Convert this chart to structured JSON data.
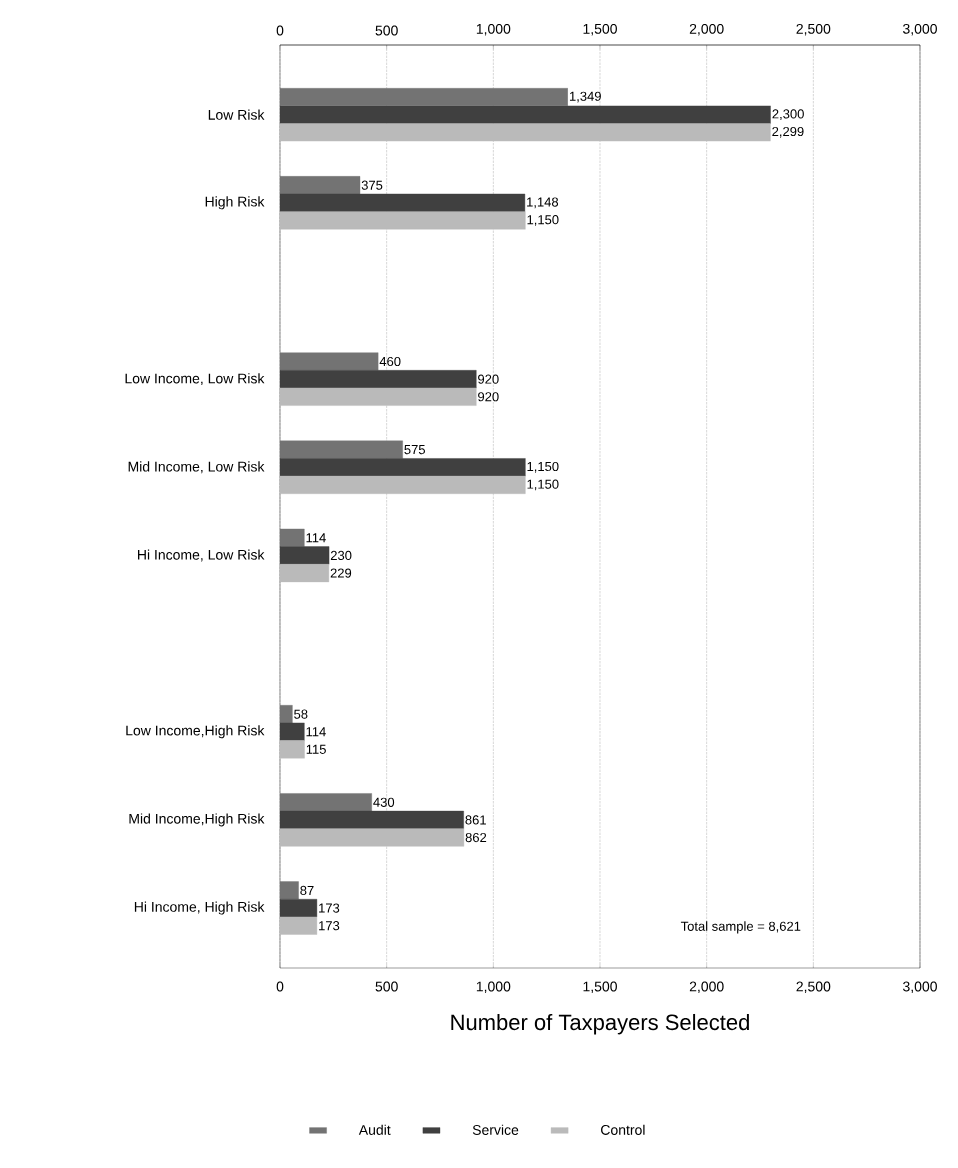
{
  "chart_data": {
    "type": "bar",
    "orientation": "horizontal",
    "xlabel": "Number of Taxpayers Selected",
    "categories": [
      "Low Risk",
      "High Risk",
      null,
      "Low Income, Low Risk",
      "Mid Income, Low Risk",
      "Hi Income,  Low Risk",
      null,
      "Low Income,High Risk",
      "Mid Income,High Risk",
      "Hi Income, High Risk"
    ],
    "series": [
      {
        "name": "Audit",
        "color": "#737373",
        "values": [
          1349,
          375,
          null,
          460,
          575,
          114,
          null,
          58,
          430,
          87
        ],
        "value_labels": [
          "1,349",
          "375",
          null,
          "460",
          "575",
          "114",
          null,
          "58",
          "430",
          "87"
        ]
      },
      {
        "name": "Service",
        "color": "#404040",
        "values": [
          2300,
          1148,
          null,
          920,
          1150,
          230,
          null,
          114,
          861,
          173
        ],
        "value_labels": [
          "2,300",
          "1,148",
          null,
          "920",
          "1,150",
          "230",
          null,
          "114",
          "861",
          "173"
        ]
      },
      {
        "name": "Control",
        "color": "#bababa",
        "values": [
          2299,
          1150,
          null,
          920,
          1150,
          229,
          null,
          115,
          862,
          173
        ],
        "value_labels": [
          "2,299",
          "1,150",
          null,
          "920",
          "1,150",
          "229",
          null,
          "115",
          "862",
          "173"
        ]
      }
    ],
    "xlim": [
      0,
      3000
    ],
    "xticks": [
      0,
      {
        "value": 500,
        "label": "500"
      },
      {
        "value": 1000,
        "label": "1,000"
      },
      {
        "value": 1500,
        "label": "1,500"
      },
      {
        "value": 2000,
        "label": "2,000"
      },
      {
        "value": 2500,
        "label": "2,500"
      },
      {
        "value": 3000,
        "label": "3,000"
      }
    ],
    "x2lim": [
      0,
      3000
    ],
    "x2ticks": [
      0,
      {
        "value": 500,
        "label": "500"
      },
      {
        "value": 1000,
        "label": "1,000"
      },
      {
        "value": 1500,
        "label": "1,500"
      },
      {
        "value": 2000,
        "label": "2,000"
      },
      {
        "value": 2500,
        "label": "2,500"
      },
      {
        "value": 3000,
        "label": "3,000"
      }
    ],
    "grid": "x",
    "legend": "bottom",
    "annotations": [
      "Total sample = 8,621"
    ]
  }
}
